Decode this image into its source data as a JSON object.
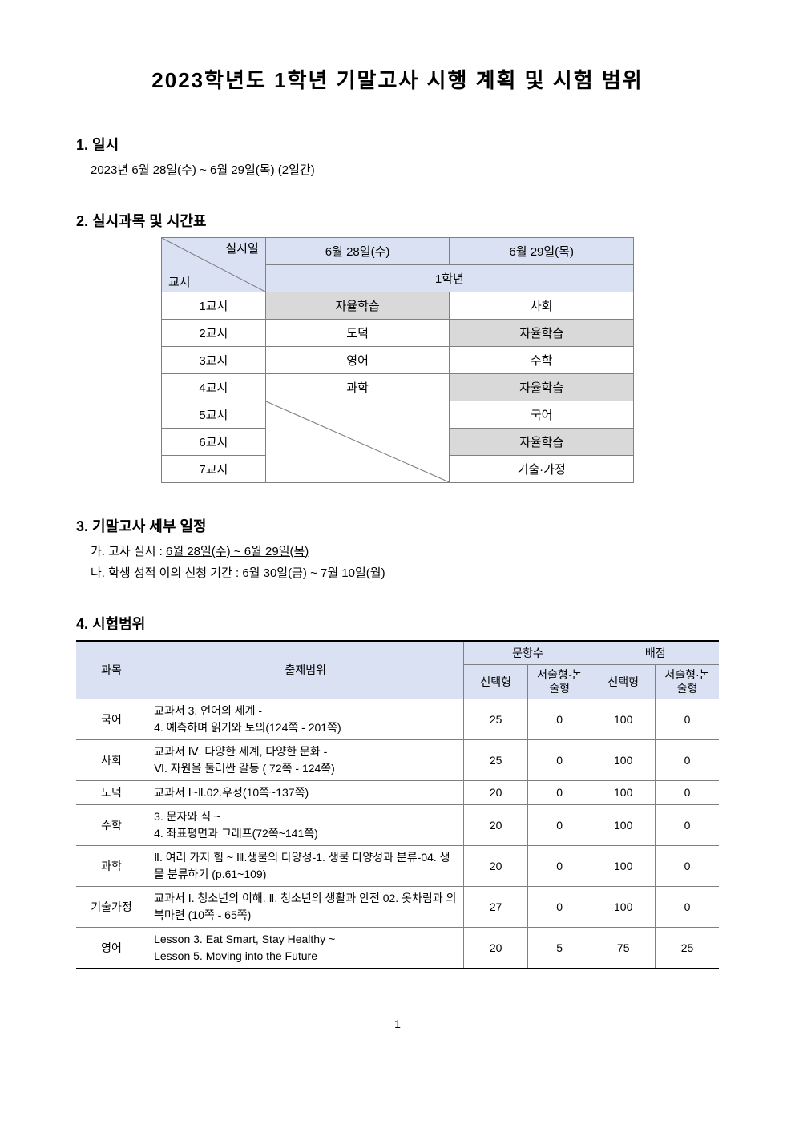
{
  "title": "2023학년도 1학년 기말고사 시행 계획 및 시험 범위",
  "section1": {
    "heading": "1. 일시",
    "content": "2023년 6월 28일(수) ~ 6월 29일(목) (2일간)"
  },
  "section2": {
    "heading": "2. 실시과목 및 시간표",
    "table": {
      "header_diag_top": "실시일",
      "header_diag_bottom": "교시",
      "day1": "6월 28일(수)",
      "day2": "6월 29일(목)",
      "grade_label": "1학년",
      "rows": [
        {
          "period": "1교시",
          "d1": "자율학습",
          "d1_gray": true,
          "d2": "사회",
          "d2_gray": false
        },
        {
          "period": "2교시",
          "d1": "도덕",
          "d1_gray": false,
          "d2": "자율학습",
          "d2_gray": true
        },
        {
          "period": "3교시",
          "d1": "영어",
          "d1_gray": false,
          "d2": "수학",
          "d2_gray": false
        },
        {
          "period": "4교시",
          "d1": "과학",
          "d1_gray": false,
          "d2": "자율학습",
          "d2_gray": true
        },
        {
          "period": "5교시",
          "d1": "",
          "d1_diag": true,
          "d2": "국어",
          "d2_gray": false
        },
        {
          "period": "6교시",
          "d1": "",
          "d1_gray": false,
          "d2": "자율학습",
          "d2_gray": true
        },
        {
          "period": "7교시",
          "d1": "",
          "d1_gray": false,
          "d2": "기술·가정",
          "d2_gray": false
        }
      ]
    }
  },
  "section3": {
    "heading": "3. 기말고사 세부 일정",
    "item_a_prefix": "가. 고사 실시 : ",
    "item_a_underline": "6월 28일(수) ~ 6월 29일(목)",
    "item_b_prefix": "나. 학생 성적 이의 신청 기간 : ",
    "item_b_underline": "6월 30일(금) ~ 7월 10일(월)"
  },
  "section4": {
    "heading": "4. 시험범위",
    "table": {
      "headers": {
        "subject": "과목",
        "scope": "출제범위",
        "questions": "문항수",
        "points": "배점",
        "choice": "선택형",
        "essay": "서술형·논술형"
      },
      "rows": [
        {
          "subject": "국어",
          "scope": "교과서 3. 언어의 세계 -\n4. 예측하며 읽기와 토의(124쪽 - 201쪽)",
          "q_choice": "25",
          "q_essay": "0",
          "p_choice": "100",
          "p_essay": "0"
        },
        {
          "subject": "사회",
          "scope": "교과서 Ⅳ. 다양한 세계, 다양한 문화 -\nⅥ. 자원을 둘러싼 갈등 ( 72쪽 - 124쪽)",
          "q_choice": "25",
          "q_essay": "0",
          "p_choice": "100",
          "p_essay": "0"
        },
        {
          "subject": "도덕",
          "scope": "교과서 Ⅰ~Ⅱ.02.우정(10쪽~137쪽)",
          "q_choice": "20",
          "q_essay": "0",
          "p_choice": "100",
          "p_essay": "0"
        },
        {
          "subject": "수학",
          "scope": "3. 문자와 식 ~\n4. 좌표평면과 그래프(72쪽~141쪽)",
          "q_choice": "20",
          "q_essay": "0",
          "p_choice": "100",
          "p_essay": "0"
        },
        {
          "subject": "과학",
          "scope": "Ⅱ. 여러 가지 힘 ~ Ⅲ.생물의 다양성-1. 생물 다양성과 분류-04. 생물 분류하기 (p.61~109)",
          "q_choice": "20",
          "q_essay": "0",
          "p_choice": "100",
          "p_essay": "0"
        },
        {
          "subject": "기술가정",
          "scope": "교과서 Ⅰ. 청소년의 이해. Ⅱ. 청소년의 생활과 안전 02. 옷차림과 의복마련 (10쪽 - 65쪽)",
          "q_choice": "27",
          "q_essay": "0",
          "p_choice": "100",
          "p_essay": "0"
        },
        {
          "subject": "영어",
          "scope": "Lesson 3. Eat Smart, Stay Healthy ~\nLesson 5. Moving into the Future",
          "q_choice": "20",
          "q_essay": "5",
          "p_choice": "75",
          "p_essay": "25"
        }
      ]
    }
  },
  "page_number": "1",
  "colors": {
    "header_bg": "#d9e1f2",
    "gray_bg": "#d9d9d9",
    "border": "#808080",
    "thick_border": "#000000",
    "text": "#000000",
    "background": "#ffffff"
  }
}
